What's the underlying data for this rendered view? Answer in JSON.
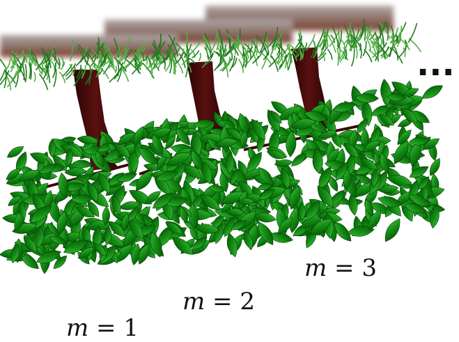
{
  "labels": [
    "m = 1",
    "m = 2",
    "m = 3"
  ],
  "ellipsis": "..."
}
